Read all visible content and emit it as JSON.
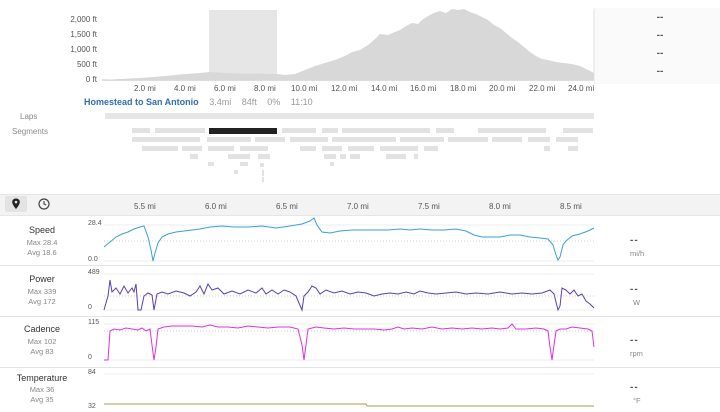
{
  "elevation": {
    "y_labels": [
      "2,000 ft",
      "1,500 ft",
      "1,000 ft",
      "500 ft",
      "0 ft"
    ],
    "x_labels": [
      "2.0 mi",
      "4.0 mi",
      "6.0 mi",
      "8.0 mi",
      "10.0 mi",
      "12.0 mi",
      "14.0 mi",
      "16.0 mi",
      "18.0 mi",
      "20.0 mi",
      "22.0 mi",
      "24.0 mi"
    ],
    "side_values": [
      "--",
      "--",
      "--",
      "--"
    ]
  },
  "segment": {
    "name": "Homestead to San Antonio",
    "distance": "3.4mi",
    "elevation": "84ft",
    "grade": "0%",
    "time": "11:10"
  },
  "rows": {
    "laps": "Laps",
    "segments": "Segments"
  },
  "toolbar": {
    "distance_icon": "location-pin-icon",
    "time_icon": "clock-icon",
    "x_labels": [
      "5.5 mi",
      "6.0 mi",
      "6.5 mi",
      "7.0 mi",
      "7.5 mi",
      "8.0 mi",
      "8.5 mi"
    ]
  },
  "panels": {
    "speed": {
      "name": "Speed",
      "max": "Max 28.4",
      "avg": "Avg 18.6",
      "ymax": "28.4",
      "ymin": "0.0",
      "value": "--",
      "unit": "mi/h",
      "color": "#3aa0d6"
    },
    "power": {
      "name": "Power",
      "max": "Max 339",
      "avg": "Avg 172",
      "ymax": "489",
      "ymin": "0",
      "value": "--",
      "unit": "W",
      "color": "#5a3fb0"
    },
    "cadence": {
      "name": "Cadence",
      "max": "Max 102",
      "avg": "Avg 83",
      "ymax": "115",
      "ymin": "0",
      "value": "--",
      "unit": "rpm",
      "color": "#e02fe0"
    },
    "temperature": {
      "name": "Temperature",
      "max": "Max 36",
      "avg": "Avg 35",
      "ymax": "84",
      "ymin": "32",
      "value": "--",
      "unit": "°F",
      "color": "#b7b070"
    }
  }
}
